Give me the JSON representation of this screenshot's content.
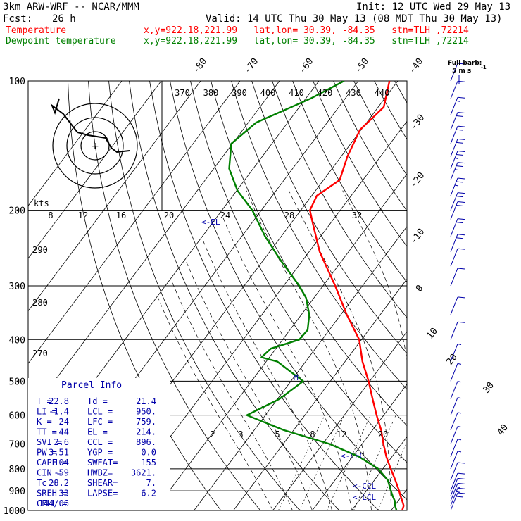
{
  "header": {
    "model": "3km ARW-WRF -- NCAR/MMM",
    "init": "Init: 12 UTC Wed 29 May 13",
    "fcst_label": "Fcst:",
    "fcst_value": "26 h",
    "valid": "Valid: 14 UTC Thu 30 May 13 (08 MDT Thu 30 May 13)",
    "temp_label": "Temperature",
    "temp_info": "x,y=922.18,221.99   lat,lon= 30.39, -84.35   stn=TLH ,72214",
    "dew_label": "Dewpoint temperature",
    "dew_info": "x,y=922.18,221.99   lat,lon= 30.39, -84.35   stn=TLH ,72214",
    "temp_color": "#ff0000",
    "dew_color": "#008000"
  },
  "barb_legend": {
    "title": "Full barb:",
    "value": "5 m s",
    "superscript": "-1"
  },
  "parcel_info": {
    "title": "Parcel Info",
    "rows": [
      [
        "T  =",
        "22.8",
        "Td =",
        "21.4"
      ],
      [
        "LI =",
        "-1.4",
        "LCL =",
        "950."
      ],
      [
        "K  =",
        "24",
        "LFC =",
        "759."
      ],
      [
        "TT =",
        "44",
        "EL  =",
        "214."
      ],
      [
        "SVI =",
        "2.6",
        "CCL =",
        "896."
      ],
      [
        "PW =",
        "3.51",
        "YGP =",
        "0.0"
      ],
      [
        "CAPE =",
        "104",
        "SWEAT=",
        "155"
      ],
      [
        "CIN =",
        "-59",
        "HWBZ=",
        "3621."
      ],
      [
        "Tc =",
        "28.2",
        "SHEAR=",
        "7."
      ],
      [
        "SREH =",
        "33",
        "LAPSE=",
        "6.2"
      ],
      [
        "CELL =",
        "144/06",
        "",
        ""
      ]
    ]
  },
  "hodograph": {
    "unit_label": "kts",
    "ring_labels": [
      "8",
      "12",
      "16",
      "20",
      "24",
      "28",
      "32"
    ]
  },
  "level_markers": [
    {
      "label": "<-EL",
      "p": 214
    },
    {
      "label": "<-LFC",
      "p": 759
    },
    {
      "label": "<-CCL",
      "p": 896
    },
    {
      "label": "<-LCL",
      "p": 950
    },
    {
      "label": "M",
      "p": 500
    }
  ],
  "chart_data": {
    "type": "line",
    "title": "",
    "xlabel": "",
    "ylabel": "",
    "y_scale": "log-pressure",
    "pressure_levels": [
      1000,
      900,
      800,
      700,
      600,
      500,
      400,
      300,
      200,
      100
    ],
    "isotherm_labels": [
      -80,
      -70,
      -60,
      -50,
      -40,
      -30,
      -20,
      -10,
      0,
      10,
      20,
      30,
      40
    ],
    "theta_labels": [
      370,
      380,
      390,
      400,
      410,
      420,
      430,
      440
    ],
    "theta_labels_left": [
      290,
      280,
      270
    ],
    "mixing_ratio_labels": [
      2,
      3,
      5,
      8,
      12,
      20
    ],
    "series": [
      {
        "name": "Temperature",
        "color": "#ff0000",
        "p": [
          1000,
          975,
          950,
          925,
          900,
          850,
          800,
          750,
          700,
          650,
          600,
          550,
          500,
          450,
          400,
          350,
          300,
          250,
          214,
          200,
          185,
          170,
          150,
          130,
          115,
          100
        ],
        "t": [
          22.8,
          22.3,
          21.0,
          19.6,
          18.3,
          15.3,
          12.0,
          8.6,
          5.4,
          2.2,
          -1.8,
          -5.9,
          -10.3,
          -15.6,
          -20.6,
          -28.5,
          -36.9,
          -47.3,
          -54.6,
          -57.7,
          -58.7,
          -55.9,
          -58.4,
          -60.3,
          -58.6,
          -62.1
        ]
      },
      {
        "name": "Dewpoint temperature",
        "color": "#008000",
        "p": [
          1000,
          975,
          950,
          925,
          900,
          850,
          800,
          750,
          700,
          650,
          600,
          550,
          500,
          450,
          440,
          420,
          400,
          380,
          350,
          320,
          300,
          260,
          230,
          200,
          180,
          160,
          140,
          125,
          110,
          100
        ],
        "td": [
          21.4,
          20.1,
          19.1,
          17.6,
          16.2,
          13.4,
          8.8,
          1.7,
          -8.3,
          -22.5,
          -34.7,
          -29.5,
          -26.9,
          -37.2,
          -42.0,
          -41.3,
          -35.8,
          -35.5,
          -38.0,
          -42.0,
          -46.0,
          -56.0,
          -64.1,
          -72.3,
          -79.8,
          -86.1,
          -90.3,
          -88.0,
          -78.8,
          -73.6
        ]
      }
    ],
    "wind_barbs": [
      {
        "p": 1000,
        "kts": 20
      },
      {
        "p": 975,
        "kts": 15
      },
      {
        "p": 950,
        "kts": 15
      },
      {
        "p": 925,
        "kts": 10
      },
      {
        "p": 900,
        "kts": 10
      },
      {
        "p": 850,
        "kts": 10
      },
      {
        "p": 800,
        "kts": 5
      },
      {
        "p": 750,
        "kts": 5
      },
      {
        "p": 700,
        "kts": 5
      },
      {
        "p": 650,
        "kts": 5
      },
      {
        "p": 600,
        "kts": 5
      },
      {
        "p": 550,
        "kts": 5
      },
      {
        "p": 500,
        "kts": 5
      },
      {
        "p": 450,
        "kts": 5
      },
      {
        "p": 400,
        "kts": 10
      },
      {
        "p": 350,
        "kts": 10
      },
      {
        "p": 300,
        "kts": 10
      },
      {
        "p": 270,
        "kts": 10
      },
      {
        "p": 250,
        "kts": 20
      },
      {
        "p": 230,
        "kts": 20
      },
      {
        "p": 210,
        "kts": 20
      },
      {
        "p": 200,
        "kts": 20
      },
      {
        "p": 185,
        "kts": 25
      },
      {
        "p": 170,
        "kts": 25
      },
      {
        "p": 160,
        "kts": 25
      },
      {
        "p": 150,
        "kts": 20
      },
      {
        "p": 140,
        "kts": 20
      },
      {
        "p": 130,
        "kts": 20
      },
      {
        "p": 120,
        "kts": 15
      },
      {
        "p": 110,
        "kts": 10
      },
      {
        "p": 100,
        "kts": 10
      }
    ],
    "grid": true
  }
}
